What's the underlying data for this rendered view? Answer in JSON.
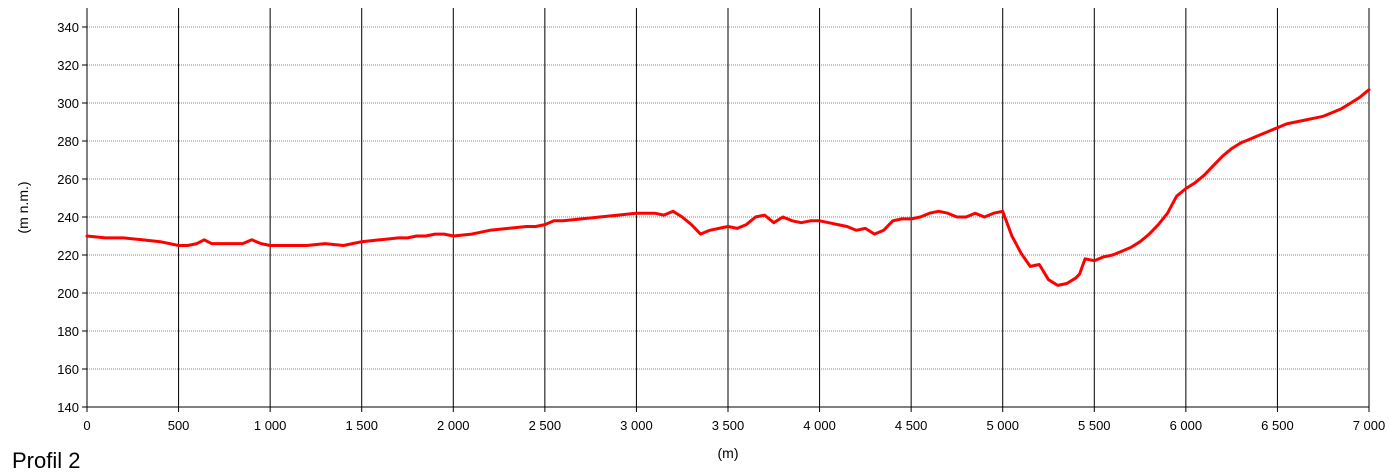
{
  "chart_data": {
    "type": "line",
    "title": "",
    "caption": "Profil 2",
    "xlabel": "(m)",
    "ylabel": "(m n.m.)",
    "xlim": [
      0,
      7000
    ],
    "ylim": [
      140,
      350
    ],
    "x_ticks": [
      0,
      500,
      1000,
      1500,
      2000,
      2500,
      3000,
      3500,
      4000,
      4500,
      5000,
      5500,
      6000,
      6500,
      7000
    ],
    "x_tick_labels": [
      "0",
      "500",
      "1 000",
      "1 500",
      "2 000",
      "2 500",
      "3 000",
      "3 500",
      "4 000",
      "4 500",
      "5 000",
      "5 500",
      "6 000",
      "6 500",
      "7 000"
    ],
    "y_ticks": [
      140,
      160,
      180,
      200,
      220,
      240,
      260,
      280,
      300,
      320,
      340
    ],
    "y_tick_labels": [
      "140",
      "160",
      "180",
      "200",
      "220",
      "240",
      "260",
      "280",
      "300",
      "320",
      "340"
    ],
    "grid": {
      "vertical": "solid",
      "horizontal": "dotted"
    },
    "colors": {
      "line": "#ff0000",
      "vertical_grid": "#000000",
      "horizontal_grid": "#888888",
      "axis": "#000000"
    },
    "series": [
      {
        "x": [
          0,
          100,
          200,
          300,
          400,
          500,
          550,
          600,
          640,
          680,
          750,
          850,
          900,
          950,
          1000,
          1100,
          1200,
          1300,
          1400,
          1500,
          1600,
          1700,
          1750,
          1800,
          1850,
          1900,
          1950,
          2000,
          2100,
          2150,
          2200,
          2300,
          2400,
          2450,
          2500,
          2550,
          2600,
          2700,
          2800,
          2900,
          3000,
          3100,
          3150,
          3200,
          3250,
          3300,
          3350,
          3400,
          3450,
          3500,
          3550,
          3600,
          3650,
          3700,
          3750,
          3800,
          3850,
          3900,
          3950,
          4000,
          4050,
          4100,
          4150,
          4200,
          4250,
          4300,
          4350,
          4400,
          4450,
          4500,
          4550,
          4600,
          4650,
          4700,
          4750,
          4800,
          4850,
          4900,
          4950,
          5000,
          5050,
          5100,
          5150,
          5200,
          5250,
          5300,
          5350,
          5400,
          5420,
          5450,
          5500,
          5550,
          5600,
          5650,
          5700,
          5750,
          5800,
          5850,
          5900,
          5950,
          6000,
          6050,
          6100,
          6150,
          6200,
          6250,
          6300,
          6350,
          6400,
          6450,
          6500,
          6550,
          6600,
          6650,
          6700,
          6750,
          6800,
          6850,
          6900,
          6950,
          7000
        ],
        "y": [
          230,
          229,
          229,
          228,
          227,
          225,
          225,
          226,
          228,
          226,
          226,
          226,
          228,
          226,
          225,
          225,
          225,
          226,
          225,
          227,
          228,
          229,
          229,
          230,
          230,
          231,
          231,
          230,
          231,
          232,
          233,
          234,
          235,
          235,
          236,
          238,
          238,
          239,
          240,
          241,
          242,
          242,
          241,
          243,
          240,
          236,
          231,
          233,
          234,
          235,
          234,
          236,
          240,
          241,
          237,
          240,
          238,
          237,
          238,
          238,
          237,
          236,
          235,
          233,
          234,
          231,
          233,
          238,
          239,
          239,
          240,
          242,
          243,
          242,
          240,
          240,
          242,
          240,
          242,
          243,
          230,
          221,
          214,
          215,
          207,
          204,
          205,
          208,
          210,
          218,
          217,
          219,
          220,
          222,
          224,
          227,
          231,
          236,
          242,
          251,
          255,
          258,
          262,
          267,
          272,
          276,
          279,
          281,
          283,
          285,
          287,
          289,
          290,
          291,
          292,
          293,
          295,
          297,
          300,
          303,
          307
        ]
      }
    ]
  }
}
